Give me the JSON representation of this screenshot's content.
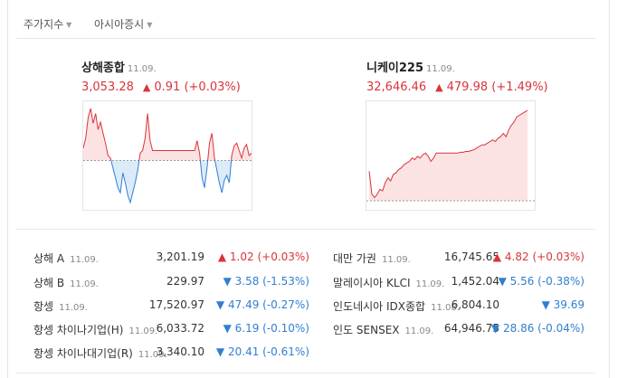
{
  "tabs": [
    {
      "label": "주가지수"
    },
    {
      "label": "아시아증시"
    }
  ],
  "charts": [
    {
      "name": "상해종합",
      "date": "11.09.",
      "value": "3,053.28",
      "change": "0.91",
      "pct": "(+0.03%)"
    },
    {
      "name": "니케이225",
      "date": "11.09.",
      "value": "32,646.46",
      "change": "479.98",
      "pct": "(+1.49%)"
    }
  ],
  "chart_data": [
    {
      "type": "line",
      "series": [
        {
          "values": [
            1,
            1.8,
            3.5,
            4.2,
            3,
            3.8,
            2.5,
            3.1,
            2.2,
            1.4,
            0.4,
            0.2,
            -0.6,
            -1.4,
            -2.2,
            -2.6,
            -1,
            -1.8,
            -2.8,
            -3.4,
            -2.6,
            -1.8,
            -0.8,
            0.6,
            0.8,
            1.8,
            3.8,
            1.6,
            0.8,
            0.8,
            0.8,
            0.8,
            0.8,
            0.8,
            0.8,
            0.8,
            0.8,
            0.8,
            0.8,
            0.8,
            0.8,
            0.8,
            0.8,
            0.8,
            0.8,
            0.8,
            1.6,
            0.6,
            -1.4,
            -2.2,
            -0.6,
            1.4,
            2.2,
            0.2,
            -0.8,
            -1.8,
            -2.6,
            -1.6,
            -1.2,
            -1.8,
            0.4,
            1.2,
            1.4,
            0.8,
            0.2,
            1,
            1.3,
            0.4,
            0.6
          ]
        }
      ],
      "baseline": 0
    },
    {
      "type": "area",
      "series": [
        {
          "values": [
            -0.4,
            -3.2,
            -3.6,
            -3.2,
            -2.6,
            -2.8,
            -1.8,
            -1.2,
            -1.6,
            -0.8,
            -0.6,
            -0.2,
            0,
            0.4,
            0.6,
            0.8,
            1.2,
            1,
            1.4,
            1.2,
            1.6,
            1.8,
            1.4,
            0.8,
            1.2,
            1.8,
            1.8,
            1.8,
            1.8,
            1.8,
            1.8,
            1.8,
            1.8,
            1.8,
            1.9,
            1.9,
            2,
            2,
            2.1,
            2.2,
            2.4,
            2.6,
            2.8,
            2.8,
            3,
            3.2,
            3.4,
            3.2,
            3.6,
            3.8,
            4.2,
            3.8,
            4.6,
            5.2,
            5.6,
            6.2,
            6.4,
            6.6,
            6.8,
            7
          ]
        }
      ],
      "baseline": -4
    }
  ],
  "rows_left": [
    {
      "name": "상해 A",
      "date": "11.09.",
      "price": "3,201.19",
      "dir": "up",
      "change": "1.02",
      "pct": "(+0.03%)"
    },
    {
      "name": "상해 B",
      "date": "11.09.",
      "price": "229.97",
      "dir": "dn",
      "change": "3.58",
      "pct": "(-1.53%)"
    },
    {
      "name": "항셍",
      "date": "11.09.",
      "price": "17,520.97",
      "dir": "dn",
      "change": "47.49",
      "pct": "(-0.27%)"
    },
    {
      "name": "항셍 차이나기업(H)",
      "date": "11.09.",
      "price": "6,033.72",
      "dir": "dn",
      "change": "6.19",
      "pct": "(-0.10%)"
    },
    {
      "name": "항셍 차이나대기업(R)",
      "date": "11.09.",
      "price": "3,340.10",
      "dir": "dn",
      "change": "20.41",
      "pct": "(-0.61%)"
    }
  ],
  "rows_right": [
    {
      "name": "대만 가권",
      "date": "11.09.",
      "price": "16,745.65",
      "dir": "up",
      "change": "4.82",
      "pct": "(+0.03%)"
    },
    {
      "name": "말레이시아 KLCI",
      "date": "11.09.",
      "price": "1,452.04",
      "dir": "dn",
      "change": "5.56",
      "pct": "(-0.38%)"
    },
    {
      "name": "인도네시아 IDX종합",
      "date": "11.08.",
      "price": "6,804.10",
      "dir": "dn",
      "change": "39.69",
      "pct": ""
    },
    {
      "name": "인도 SENSEX",
      "date": "11.09.",
      "price": "64,946.75",
      "dir": "dn",
      "change": "28.86",
      "pct": "(-0.04%)"
    }
  ],
  "colors": {
    "up": "#d9343a",
    "down": "#2f7fd1",
    "up_fill": "#fbe3e3",
    "down_fill": "#dcebf9"
  }
}
